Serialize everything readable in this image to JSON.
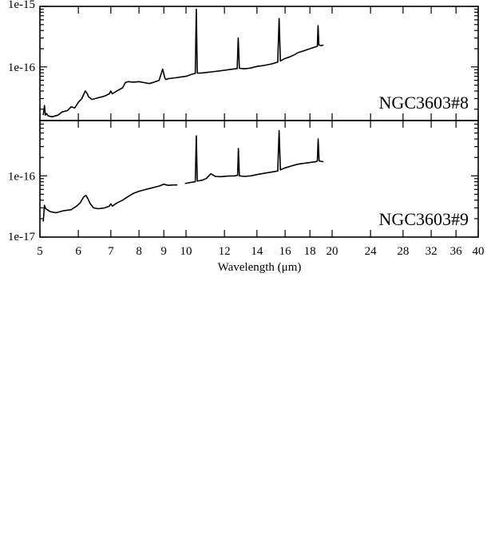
{
  "chart_data": {
    "type": "line",
    "xlabel": "Wavelength (μm)",
    "x_scale": "log",
    "xlim": [
      5,
      40
    ],
    "x_ticks": [
      "5",
      "6",
      "7",
      "8",
      "9",
      "10",
      "12",
      "14",
      "16",
      "18",
      "20",
      "24",
      "28",
      "32",
      "36",
      "40"
    ],
    "y_scale": "log",
    "grid": false,
    "panels": [
      {
        "label": "NGC3603#8",
        "label_position": "bottom-right",
        "ylim": [
          1.3e-17,
          1e-15
        ],
        "y_ticks": [
          "1e-15",
          "1e-16"
        ],
        "series": [
          {
            "x": [
              5.08,
              5.11,
              5.13,
              5.16,
              5.2,
              5.3,
              5.45,
              5.55,
              5.7,
              5.8,
              5.9,
              6.0,
              6.1,
              6.2,
              6.25,
              6.3,
              6.4,
              6.5,
              6.6,
              6.8,
              6.95,
              7.0,
              7.05,
              7.2,
              7.4,
              7.5,
              7.6,
              7.8,
              8.0,
              8.2,
              8.4,
              8.6,
              8.8,
              8.95,
              9.05,
              9.1,
              9.2,
              9.5,
              10.0,
              10.3,
              10.45,
              10.5,
              10.55,
              10.7,
              11.0,
              11.3,
              11.6,
              12.0,
              12.5,
              12.75,
              12.81,
              12.88,
              13.2,
              13.6,
              14.0,
              14.5,
              15.0,
              15.45,
              15.55,
              15.65,
              15.9,
              16.3,
              16.7,
              17.0,
              17.5,
              18.0,
              18.5,
              18.65,
              18.71,
              18.78,
              19.0,
              19.2
            ],
            "y": [
              1.6e-17,
              2.3e-17,
              1.6e-17,
              1.7e-17,
              1.55e-17,
              1.5e-17,
              1.6e-17,
              1.8e-17,
              1.9e-17,
              2.2e-17,
              2.1e-17,
              2.6e-17,
              3e-17,
              4e-17,
              3.7e-17,
              3.2e-17,
              2.9e-17,
              3e-17,
              3.1e-17,
              3.3e-17,
              3.6e-17,
              4e-17,
              3.6e-17,
              4e-17,
              4.5e-17,
              5.5e-17,
              5.7e-17,
              5.6e-17,
              5.7e-17,
              5.5e-17,
              5.3e-17,
              5.6e-17,
              6e-17,
              9.2e-17,
              6.5e-17,
              6.2e-17,
              6.4e-17,
              6.6e-17,
              7e-17,
              7.6e-17,
              7.8e-17,
              9e-16,
              7.9e-17,
              7.9e-17,
              8.1e-17,
              8.3e-17,
              8.5e-17,
              8.8e-17,
              9.2e-17,
              9.4e-17,
              3e-16,
              9.5e-17,
              9.3e-17,
              9.6e-17,
              1.02e-16,
              1.06e-16,
              1.12e-16,
              1.2e-16,
              6.3e-16,
              1.25e-16,
              1.35e-16,
              1.45e-16,
              1.58e-16,
              1.72e-16,
              1.85e-16,
              2e-16,
              2.15e-16,
              2.2e-16,
              4.8e-16,
              2.3e-16,
              2.25e-16,
              2.3e-16
            ]
          }
        ]
      },
      {
        "label": "NGC3603#9",
        "label_position": "bottom-right",
        "ylim": [
          1e-17,
          8e-16
        ],
        "y_ticks": [
          "1e-16",
          "1e-17"
        ],
        "series": [
          {
            "x": [
              5.08,
              5.11,
              5.14,
              5.18,
              5.25,
              5.4,
              5.6,
              5.8,
              5.95,
              6.05,
              6.15,
              6.22,
              6.28,
              6.35,
              6.45,
              6.6,
              6.8,
              6.95,
              7.0,
              7.05,
              7.2,
              7.4,
              7.6,
              7.8,
              8.0,
              8.2,
              8.4,
              8.6,
              8.8,
              9.0,
              9.2,
              9.4,
              9.6
            ],
            "y": [
              1.8e-17,
              3.3e-17,
              2.9e-17,
              2.8e-17,
              2.6e-17,
              2.5e-17,
              2.7e-17,
              2.8e-17,
              3.2e-17,
              3.6e-17,
              4.5e-17,
              4.8e-17,
              4.2e-17,
              3.5e-17,
              3e-17,
              2.9e-17,
              3e-17,
              3.2e-17,
              3.5e-17,
              3.2e-17,
              3.6e-17,
              4e-17,
              4.6e-17,
              5.2e-17,
              5.6e-17,
              5.9e-17,
              6.2e-17,
              6.5e-17,
              6.8e-17,
              7.3e-17,
              7e-17,
              7.1e-17,
              7.1e-17
            ]
          },
          {
            "x": [
              9.95,
              10.2,
              10.45,
              10.5,
              10.55,
              10.8,
              11.0,
              11.25,
              11.5,
              11.8,
              12.2,
              12.6,
              12.77,
              12.82,
              12.88,
              13.2,
              13.6,
              14.0,
              14.5,
              15.0,
              15.45,
              15.55,
              15.65,
              16.0,
              16.5,
              17.0,
              17.5,
              18.0,
              18.5,
              18.65,
              18.72,
              18.8,
              19.2
            ],
            "y": [
              7.5e-17,
              7.8e-17,
              8e-17,
              4.5e-16,
              8.2e-17,
              8.5e-17,
              9e-17,
              1.08e-16,
              9.8e-17,
              9.7e-17,
              9.9e-17,
              1e-16,
              1.02e-16,
              2.8e-16,
              1e-16,
              9.8e-17,
              1e-16,
              1.05e-16,
              1.1e-16,
              1.15e-16,
              1.2e-16,
              5.5e-16,
              1.25e-16,
              1.35e-16,
              1.45e-16,
              1.55e-16,
              1.6e-16,
              1.65e-16,
              1.7e-16,
              1.75e-16,
              4e-16,
              1.75e-16,
              1.7e-16
            ]
          }
        ]
      }
    ]
  }
}
